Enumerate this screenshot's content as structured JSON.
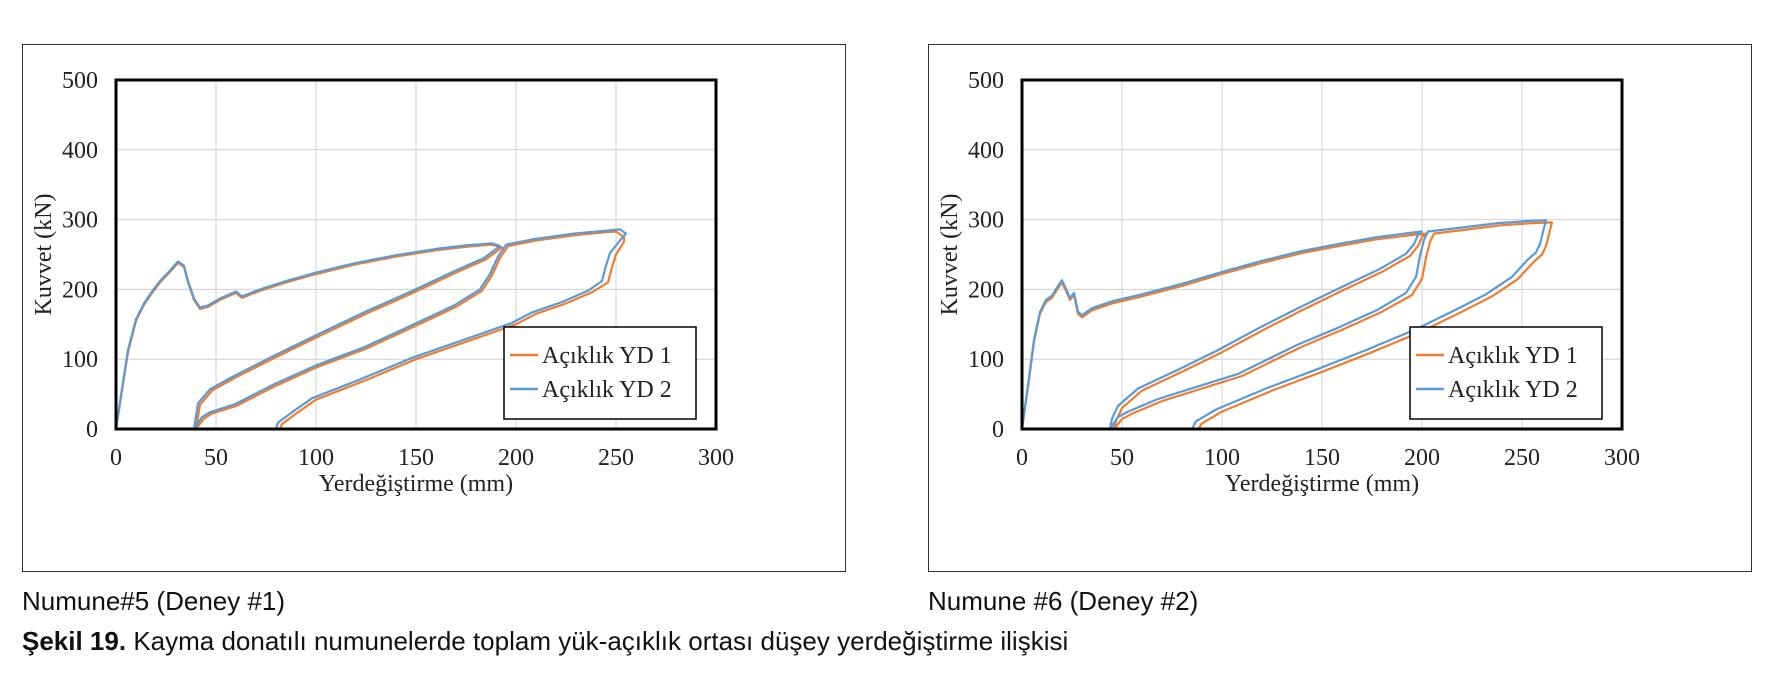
{
  "caption": {
    "label": "Şekil 19.",
    "text": "Kayma donatılı numunelerde toplam yük-açıklık ortası düşey yerdeğiştirme ilişkisi"
  },
  "colors": {
    "series1": "#ED7D31",
    "series2": "#5B9BD5"
  },
  "chart_data": [
    {
      "type": "line",
      "subtitle": "Numune#5 (Deney #1)",
      "xlabel": "Yerdeğiştirme (mm)",
      "ylabel": "Kuvvet (kN)",
      "xlim": [
        0,
        300
      ],
      "ylim": [
        0,
        500
      ],
      "xticks": [
        "0",
        "50",
        "100",
        "150",
        "200",
        "250",
        "300"
      ],
      "yticks": [
        "0",
        "100",
        "200",
        "300",
        "400",
        "500"
      ],
      "grid": true,
      "legend_position": "lower-right",
      "series": [
        {
          "name": "Açıklık YD 1",
          "points": [
            [
              0,
              0
            ],
            [
              3,
              55
            ],
            [
              6,
              110
            ],
            [
              10,
              155
            ],
            [
              14,
              178
            ],
            [
              18,
              195
            ],
            [
              22,
              210
            ],
            [
              27,
              225
            ],
            [
              31,
              238
            ],
            [
              34,
              232
            ],
            [
              36,
              210
            ],
            [
              39,
              185
            ],
            [
              42,
              172
            ],
            [
              46,
              175
            ],
            [
              52,
              185
            ],
            [
              60,
              195
            ],
            [
              63,
              188
            ],
            [
              72,
              198
            ],
            [
              85,
              210
            ],
            [
              100,
              222
            ],
            [
              120,
              236
            ],
            [
              140,
              247
            ],
            [
              160,
              256
            ],
            [
              175,
              261
            ],
            [
              188,
              264
            ],
            [
              193,
              260
            ],
            [
              192,
              258
            ],
            [
              185,
              243
            ],
            [
              170,
              224
            ],
            [
              150,
              197
            ],
            [
              125,
              165
            ],
            [
              100,
              131
            ],
            [
              80,
              103
            ],
            [
              60,
              74
            ],
            [
              48,
              55
            ],
            [
              42,
              35
            ],
            [
              40,
              0
            ],
            [
              40,
              0
            ],
            [
              44,
              15
            ],
            [
              48,
              22
            ],
            [
              60,
              33
            ],
            [
              80,
              62
            ],
            [
              100,
              88
            ],
            [
              125,
              115
            ],
            [
              150,
              148
            ],
            [
              170,
              175
            ],
            [
              183,
              198
            ],
            [
              188,
              220
            ],
            [
              192,
              245
            ],
            [
              196,
              262
            ],
            [
              210,
              270
            ],
            [
              230,
              278
            ],
            [
              245,
              282
            ],
            [
              250,
              283
            ],
            [
              254,
              275
            ],
            [
              254,
              268
            ],
            [
              250,
              250
            ],
            [
              248,
              232
            ],
            [
              246,
              210
            ],
            [
              238,
              196
            ],
            [
              225,
              180
            ],
            [
              210,
              165
            ],
            [
              200,
              150
            ],
            [
              180,
              130
            ],
            [
              150,
              100
            ],
            [
              125,
              70
            ],
            [
              100,
              42
            ],
            [
              90,
              22
            ],
            [
              83,
              7
            ],
            [
              82,
              0
            ]
          ]
        },
        {
          "name": "Açıklık YD 2",
          "points": [
            [
              0,
              0
            ],
            [
              3,
              58
            ],
            [
              6,
              113
            ],
            [
              10,
              157
            ],
            [
              14,
              180
            ],
            [
              18,
              197
            ],
            [
              22,
              212
            ],
            [
              27,
              227
            ],
            [
              31,
              240
            ],
            [
              34,
              234
            ],
            [
              36,
              212
            ],
            [
              39,
              187
            ],
            [
              42,
              174
            ],
            [
              46,
              177
            ],
            [
              52,
              187
            ],
            [
              60,
              197
            ],
            [
              63,
              190
            ],
            [
              72,
              200
            ],
            [
              85,
              212
            ],
            [
              100,
              224
            ],
            [
              120,
              238
            ],
            [
              140,
              249
            ],
            [
              160,
              258
            ],
            [
              175,
              263
            ],
            [
              188,
              266
            ],
            [
              192,
              262
            ],
            [
              191,
              260
            ],
            [
              184,
              245
            ],
            [
              169,
              226
            ],
            [
              149,
              199
            ],
            [
              124,
              167
            ],
            [
              99,
              133
            ],
            [
              79,
              105
            ],
            [
              59,
              76
            ],
            [
              47,
              57
            ],
            [
              41,
              37
            ],
            [
              39,
              0
            ],
            [
              39,
              0
            ],
            [
              43,
              17
            ],
            [
              47,
              24
            ],
            [
              59,
              35
            ],
            [
              79,
              64
            ],
            [
              99,
              90
            ],
            [
              124,
              117
            ],
            [
              149,
              150
            ],
            [
              169,
              177
            ],
            [
              182,
              200
            ],
            [
              187,
              222
            ],
            [
              191,
              247
            ],
            [
              195,
              264
            ],
            [
              209,
              272
            ],
            [
              229,
              280
            ],
            [
              244,
              284
            ],
            [
              252,
              286
            ],
            [
              255,
              280
            ],
            [
              252,
              270
            ],
            [
              247,
              252
            ],
            [
              245,
              234
            ],
            [
              243,
              212
            ],
            [
              236,
              198
            ],
            [
              223,
              182
            ],
            [
              208,
              167
            ],
            [
              198,
              152
            ],
            [
              178,
              132
            ],
            [
              148,
              102
            ],
            [
              123,
              72
            ],
            [
              98,
              44
            ],
            [
              88,
              24
            ],
            [
              81,
              9
            ],
            [
              80,
              0
            ]
          ]
        }
      ]
    },
    {
      "type": "line",
      "subtitle": "Numune #6 (Deney #2)",
      "xlabel": "Yerdeğiştirme (mm)",
      "ylabel": "Kuvvet (kN)",
      "xlim": [
        0,
        300
      ],
      "ylim": [
        0,
        500
      ],
      "xticks": [
        "0",
        "50",
        "100",
        "150",
        "200",
        "250",
        "300"
      ],
      "yticks": [
        "0",
        "100",
        "200",
        "300",
        "400",
        "500"
      ],
      "grid": true,
      "legend_position": "lower-right",
      "series": [
        {
          "name": "Açıklık YD 1",
          "points": [
            [
              0,
              0
            ],
            [
              3,
              60
            ],
            [
              6,
              125
            ],
            [
              9,
              165
            ],
            [
              12,
              182
            ],
            [
              15,
              188
            ],
            [
              18,
              202
            ],
            [
              20,
              210
            ],
            [
              22,
              198
            ],
            [
              24,
              185
            ],
            [
              26,
              192
            ],
            [
              28,
              165
            ],
            [
              30,
              160
            ],
            [
              35,
              170
            ],
            [
              45,
              180
            ],
            [
              60,
              190
            ],
            [
              80,
              205
            ],
            [
              100,
              222
            ],
            [
              120,
              238
            ],
            [
              140,
              252
            ],
            [
              160,
              263
            ],
            [
              178,
              272
            ],
            [
              195,
              278
            ],
            [
              202,
              280
            ],
            [
              200,
              275
            ],
            [
              198,
              262
            ],
            [
              194,
              248
            ],
            [
              180,
              225
            ],
            [
              160,
              198
            ],
            [
              140,
              170
            ],
            [
              120,
              141
            ],
            [
              100,
              110
            ],
            [
              80,
              82
            ],
            [
              60,
              55
            ],
            [
              50,
              30
            ],
            [
              47,
              12
            ],
            [
              46,
              0
            ],
            [
              46,
              0
            ],
            [
              50,
              14
            ],
            [
              55,
              22
            ],
            [
              70,
              40
            ],
            [
              90,
              58
            ],
            [
              110,
              76
            ],
            [
              125,
              97
            ],
            [
              140,
              118
            ],
            [
              160,
              142
            ],
            [
              180,
              168
            ],
            [
              195,
              192
            ],
            [
              200,
              215
            ],
            [
              202,
              245
            ],
            [
              204,
              268
            ],
            [
              206,
              280
            ],
            [
              220,
              285
            ],
            [
              240,
              292
            ],
            [
              255,
              295
            ],
            [
              265,
              296
            ],
            [
              264,
              285
            ],
            [
              262,
              262
            ],
            [
              260,
              250
            ],
            [
              256,
              240
            ],
            [
              248,
              215
            ],
            [
              235,
              190
            ],
            [
              220,
              168
            ],
            [
              200,
              140
            ],
            [
              175,
              110
            ],
            [
              150,
              82
            ],
            [
              125,
              55
            ],
            [
              100,
              25
            ],
            [
              90,
              8
            ],
            [
              88,
              0
            ]
          ]
        },
        {
          "name": "Açıklık YD 2",
          "points": [
            [
              0,
              0
            ],
            [
              3,
              63
            ],
            [
              6,
              128
            ],
            [
              9,
              168
            ],
            [
              12,
              185
            ],
            [
              15,
              191
            ],
            [
              18,
              205
            ],
            [
              20,
              213
            ],
            [
              22,
              201
            ],
            [
              24,
              188
            ],
            [
              26,
              195
            ],
            [
              28,
              168
            ],
            [
              30,
              163
            ],
            [
              35,
              173
            ],
            [
              45,
              183
            ],
            [
              60,
              193
            ],
            [
              80,
              208
            ],
            [
              100,
              225
            ],
            [
              120,
              241
            ],
            [
              140,
              255
            ],
            [
              160,
              266
            ],
            [
              178,
              275
            ],
            [
              194,
              281
            ],
            [
              200,
              283
            ],
            [
              198,
              278
            ],
            [
              196,
              265
            ],
            [
              192,
              251
            ],
            [
              178,
              228
            ],
            [
              158,
              201
            ],
            [
              138,
              173
            ],
            [
              118,
              144
            ],
            [
              98,
              113
            ],
            [
              78,
              85
            ],
            [
              58,
              58
            ],
            [
              48,
              33
            ],
            [
              45,
              15
            ],
            [
              44,
              0
            ],
            [
              44,
              0
            ],
            [
              48,
              17
            ],
            [
              53,
              25
            ],
            [
              68,
              43
            ],
            [
              88,
              61
            ],
            [
              108,
              79
            ],
            [
              123,
              100
            ],
            [
              138,
              121
            ],
            [
              158,
              145
            ],
            [
              178,
              171
            ],
            [
              192,
              195
            ],
            [
              197,
              218
            ],
            [
              199,
              248
            ],
            [
              201,
              271
            ],
            [
              203,
              283
            ],
            [
              218,
              288
            ],
            [
              238,
              295
            ],
            [
              253,
              298
            ],
            [
              262,
              299
            ],
            [
              261,
              288
            ],
            [
              259,
              265
            ],
            [
              257,
              253
            ],
            [
              253,
              243
            ],
            [
              245,
              218
            ],
            [
              232,
              193
            ],
            [
              217,
              171
            ],
            [
              197,
              143
            ],
            [
              172,
              113
            ],
            [
              147,
              85
            ],
            [
              122,
              58
            ],
            [
              97,
              28
            ],
            [
              87,
              11
            ],
            [
              85,
              0
            ]
          ]
        }
      ]
    }
  ]
}
